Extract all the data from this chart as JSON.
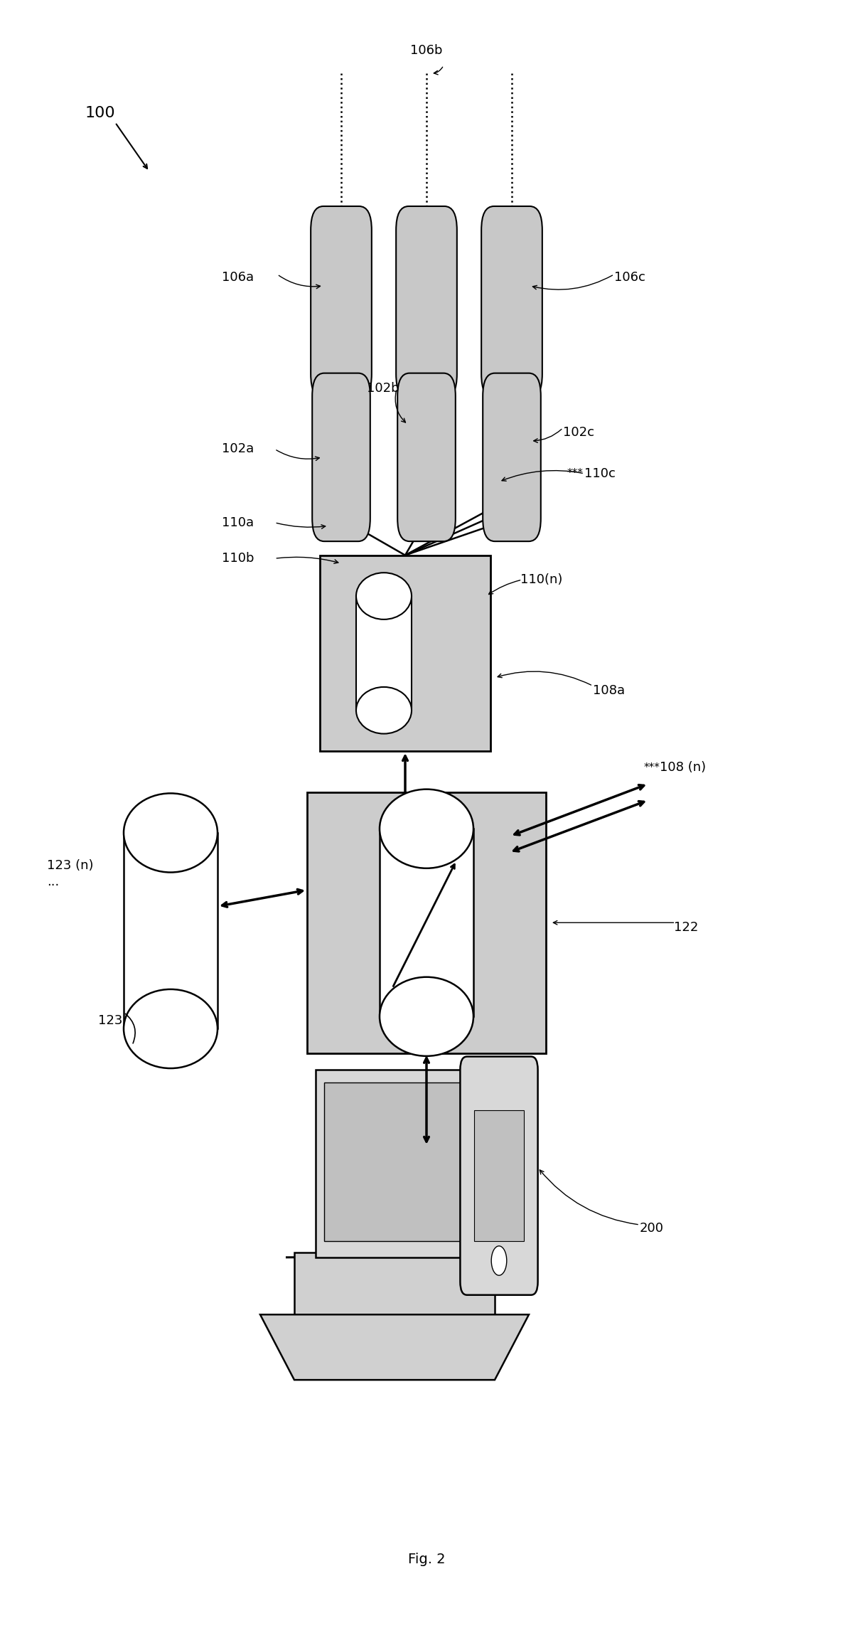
{
  "bg_color": "#ffffff",
  "box_fill": "#cccccc",
  "box_edge": "#000000",
  "sensor_fill": "#c8c8c8",
  "white": "#ffffff",
  "black": "#000000",
  "font_size": 13,
  "fig_label": "Fig. 2",
  "label_100": "100",
  "label_106a": "106a",
  "label_106b": "106b",
  "label_106c": "106c",
  "label_102a": "102a",
  "label_102b": "102b",
  "label_102c": "102c",
  "label_110a": "110a",
  "label_110b": "110b",
  "label_110c": "110c",
  "label_110n": "110(n)",
  "label_108a": "108a",
  "label_108n": "108 (n)",
  "label_122": "122",
  "label_123": "123",
  "label_123n": "123 (n)",
  "label_200": "200"
}
